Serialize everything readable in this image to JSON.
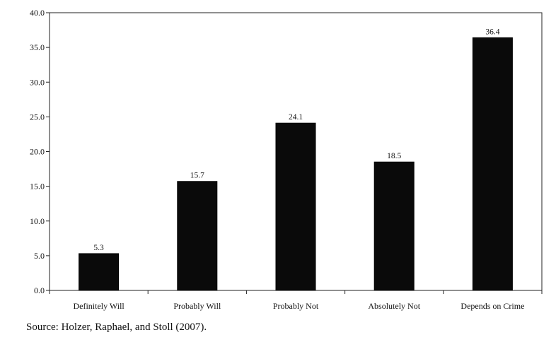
{
  "chart_data": {
    "type": "bar",
    "categories": [
      "Definitely Will",
      "Probably Will",
      "Probably Not",
      "Absolutely Not",
      "Depends on Crime"
    ],
    "values": [
      5.3,
      15.7,
      24.1,
      18.5,
      36.4
    ],
    "value_labels": [
      "5.3",
      "15.7",
      "24.1",
      "18.5",
      "36.4"
    ],
    "ylim": [
      0,
      40
    ],
    "yticks": [
      0,
      5,
      10,
      15,
      20,
      25,
      30,
      35,
      40
    ],
    "ytick_labels": [
      "0.0",
      "5.0",
      "10.0",
      "15.0",
      "20.0",
      "25.0",
      "30.0",
      "35.0",
      "40.0"
    ],
    "title": "",
    "xlabel": "",
    "ylabel": "",
    "grid": false,
    "bar_color": "#0a0a0a"
  },
  "source_note": "Source: Holzer, Raphael, and Stoll (2007)."
}
